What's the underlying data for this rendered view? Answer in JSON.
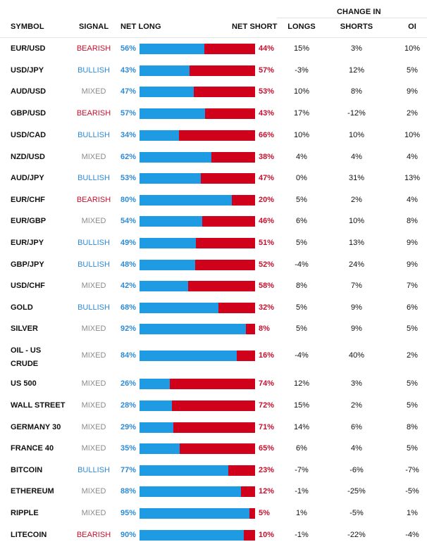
{
  "header": {
    "symbol": "SYMBOL",
    "signal": "SIGNAL",
    "net_long": "NET LONG",
    "net_short": "NET SHORT",
    "change_in": "CHANGE IN",
    "longs": "LONGS",
    "shorts": "SHORTS",
    "oi": "OI"
  },
  "colors": {
    "long": "#1f9be4",
    "short": "#d0021b",
    "bearish": "#c8102e",
    "bullish": "#2e8bd6",
    "mixed": "#8a8a8a"
  },
  "rows": [
    {
      "symbol": "EUR/USD",
      "signal": "BEARISH",
      "signal_type": "bearish",
      "net_long": "56%",
      "long_pct": 56,
      "net_short": "44%",
      "longs": "15%",
      "shorts": "3%",
      "oi": "10%"
    },
    {
      "symbol": "USD/JPY",
      "signal": "BULLISH",
      "signal_type": "bullish",
      "net_long": "43%",
      "long_pct": 43,
      "net_short": "57%",
      "longs": "-3%",
      "shorts": "12%",
      "oi": "5%"
    },
    {
      "symbol": "AUD/USD",
      "signal": "MIXED",
      "signal_type": "mixed",
      "net_long": "47%",
      "long_pct": 47,
      "net_short": "53%",
      "longs": "10%",
      "shorts": "8%",
      "oi": "9%"
    },
    {
      "symbol": "GBP/USD",
      "signal": "BEARISH",
      "signal_type": "bearish",
      "net_long": "57%",
      "long_pct": 57,
      "net_short": "43%",
      "longs": "17%",
      "shorts": "-12%",
      "oi": "2%"
    },
    {
      "symbol": "USD/CAD",
      "signal": "BULLISH",
      "signal_type": "bullish",
      "net_long": "34%",
      "long_pct": 34,
      "net_short": "66%",
      "longs": "10%",
      "shorts": "10%",
      "oi": "10%"
    },
    {
      "symbol": "NZD/USD",
      "signal": "MIXED",
      "signal_type": "mixed",
      "net_long": "62%",
      "long_pct": 62,
      "net_short": "38%",
      "longs": "4%",
      "shorts": "4%",
      "oi": "4%"
    },
    {
      "symbol": "AUD/JPY",
      "signal": "BULLISH",
      "signal_type": "bullish",
      "net_long": "53%",
      "long_pct": 53,
      "net_short": "47%",
      "longs": "0%",
      "shorts": "31%",
      "oi": "13%"
    },
    {
      "symbol": "EUR/CHF",
      "signal": "BEARISH",
      "signal_type": "bearish",
      "net_long": "80%",
      "long_pct": 80,
      "net_short": "20%",
      "longs": "5%",
      "shorts": "2%",
      "oi": "4%"
    },
    {
      "symbol": "EUR/GBP",
      "signal": "MIXED",
      "signal_type": "mixed",
      "net_long": "54%",
      "long_pct": 54,
      "net_short": "46%",
      "longs": "6%",
      "shorts": "10%",
      "oi": "8%"
    },
    {
      "symbol": "EUR/JPY",
      "signal": "BULLISH",
      "signal_type": "bullish",
      "net_long": "49%",
      "long_pct": 49,
      "net_short": "51%",
      "longs": "5%",
      "shorts": "13%",
      "oi": "9%"
    },
    {
      "symbol": "GBP/JPY",
      "signal": "BULLISH",
      "signal_type": "bullish",
      "net_long": "48%",
      "long_pct": 48,
      "net_short": "52%",
      "longs": "-4%",
      "shorts": "24%",
      "oi": "9%"
    },
    {
      "symbol": "USD/CHF",
      "signal": "MIXED",
      "signal_type": "mixed",
      "net_long": "42%",
      "long_pct": 42,
      "net_short": "58%",
      "longs": "8%",
      "shorts": "7%",
      "oi": "7%"
    },
    {
      "symbol": "GOLD",
      "signal": "BULLISH",
      "signal_type": "bullish",
      "net_long": "68%",
      "long_pct": 68,
      "net_short": "32%",
      "longs": "5%",
      "shorts": "9%",
      "oi": "6%"
    },
    {
      "symbol": "SILVER",
      "signal": "MIXED",
      "signal_type": "mixed",
      "net_long": "92%",
      "long_pct": 92,
      "net_short": "8%",
      "longs": "5%",
      "shorts": "9%",
      "oi": "5%"
    },
    {
      "symbol": "OIL - US CRUDE",
      "signal": "MIXED",
      "signal_type": "mixed",
      "net_long": "84%",
      "long_pct": 84,
      "net_short": "16%",
      "longs": "-4%",
      "shorts": "40%",
      "oi": "2%"
    },
    {
      "symbol": "US 500",
      "signal": "MIXED",
      "signal_type": "mixed",
      "net_long": "26%",
      "long_pct": 26,
      "net_short": "74%",
      "longs": "12%",
      "shorts": "3%",
      "oi": "5%"
    },
    {
      "symbol": "WALL STREET",
      "signal": "MIXED",
      "signal_type": "mixed",
      "net_long": "28%",
      "long_pct": 28,
      "net_short": "72%",
      "longs": "15%",
      "shorts": "2%",
      "oi": "5%"
    },
    {
      "symbol": "GERMANY 30",
      "signal": "MIXED",
      "signal_type": "mixed",
      "net_long": "29%",
      "long_pct": 29,
      "net_short": "71%",
      "longs": "14%",
      "shorts": "6%",
      "oi": "8%"
    },
    {
      "symbol": "FRANCE 40",
      "signal": "MIXED",
      "signal_type": "mixed",
      "net_long": "35%",
      "long_pct": 35,
      "net_short": "65%",
      "longs": "6%",
      "shorts": "4%",
      "oi": "5%"
    },
    {
      "symbol": "BITCOIN",
      "signal": "BULLISH",
      "signal_type": "bullish",
      "net_long": "77%",
      "long_pct": 77,
      "net_short": "23%",
      "longs": "-7%",
      "shorts": "-6%",
      "oi": "-7%"
    },
    {
      "symbol": "ETHEREUM",
      "signal": "MIXED",
      "signal_type": "mixed",
      "net_long": "88%",
      "long_pct": 88,
      "net_short": "12%",
      "longs": "-1%",
      "shorts": "-25%",
      "oi": "-5%"
    },
    {
      "symbol": "RIPPLE",
      "signal": "MIXED",
      "signal_type": "mixed",
      "net_long": "95%",
      "long_pct": 95,
      "net_short": "5%",
      "longs": "1%",
      "shorts": "-5%",
      "oi": "1%"
    },
    {
      "symbol": "LITECOIN",
      "signal": "BEARISH",
      "signal_type": "bearish",
      "net_long": "90%",
      "long_pct": 90,
      "net_short": "10%",
      "longs": "-1%",
      "shorts": "-22%",
      "oi": "-4%"
    }
  ]
}
